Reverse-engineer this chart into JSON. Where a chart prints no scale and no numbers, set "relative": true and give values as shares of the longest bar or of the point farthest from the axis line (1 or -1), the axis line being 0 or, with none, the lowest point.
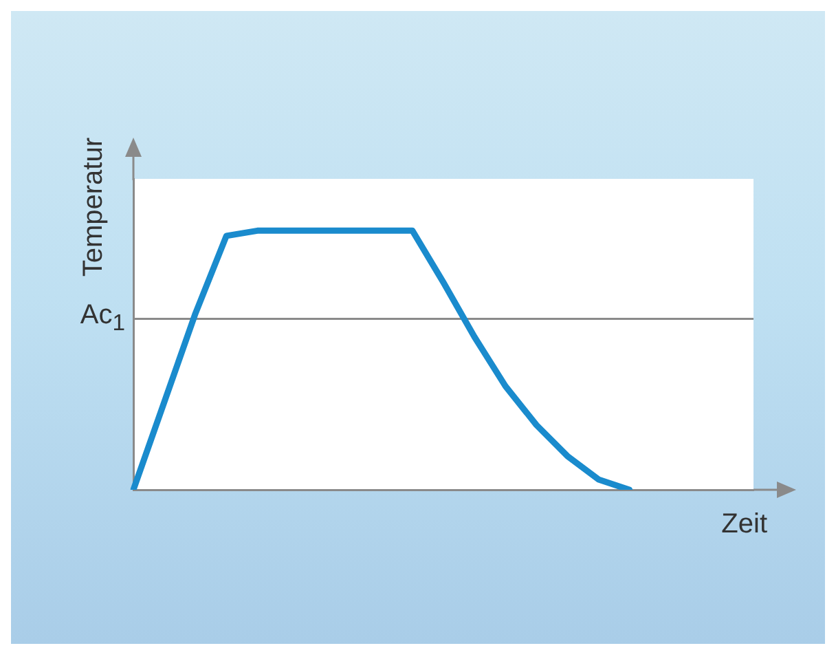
{
  "chart_data": {
    "type": "line",
    "relative": true,
    "xlabel": "Zeit",
    "ylabel": "Temperatur",
    "categories": [
      null,
      null,
      null,
      null,
      null,
      null,
      null,
      null,
      null,
      null,
      null,
      null,
      null,
      null,
      null,
      null,
      null,
      null,
      null,
      null,
      null
    ],
    "series": [
      {
        "color": "#1a8bcd",
        "values": [
          0,
          0.34,
          0.68,
          0.98,
          1,
          1,
          1,
          1,
          1,
          1,
          0.8,
          0.59,
          0.4,
          0.25,
          0.13,
          0.04,
          0,
          null,
          null,
          null,
          null
        ]
      }
    ],
    "ref_lines": [
      {
        "axis": "y",
        "value": 0.66,
        "label": "Ac$_{1}$",
        "color": "#8a8a8a"
      }
    ],
    "marker": "none",
    "line_style": "solid",
    "grid": false,
    "legend": false
  }
}
